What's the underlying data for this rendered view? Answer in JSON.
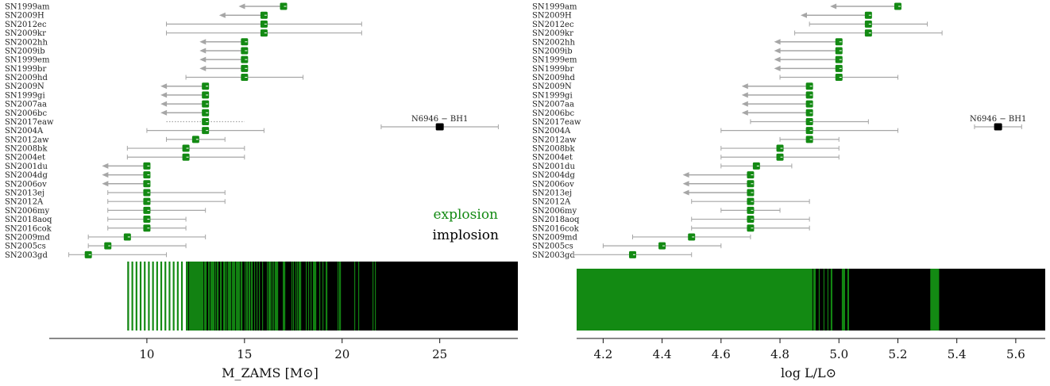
{
  "colors": {
    "explosion": "#138a13",
    "implosion": "#000000",
    "error": "#a6a6a6"
  },
  "legend": {
    "explosion": "explosion",
    "implosion": "implosion"
  },
  "chart_data": [
    {
      "type": "scatter",
      "xlabel": "M_ZAMS [M⊙]",
      "xlim": [
        5,
        29
      ],
      "xticks": [
        10,
        15,
        20,
        25
      ],
      "points": [
        {
          "name": "SN1999am",
          "x": 17,
          "low_limit": true,
          "lo": 14.7
        },
        {
          "name": "SN2009H",
          "x": 16,
          "low_limit": true,
          "lo": 13.7
        },
        {
          "name": "SN2012ec",
          "x": 16,
          "lo": 11,
          "hi": 21
        },
        {
          "name": "SN2009kr",
          "x": 16,
          "lo": 11,
          "hi": 21
        },
        {
          "name": "SN2002hh",
          "x": 15,
          "low_limit": true,
          "lo": 12.7
        },
        {
          "name": "SN2009ib",
          "x": 15,
          "low_limit": true,
          "lo": 12.7
        },
        {
          "name": "SN1999em",
          "x": 15,
          "low_limit": true,
          "lo": 12.7
        },
        {
          "name": "SN1999br",
          "x": 15,
          "low_limit": true,
          "lo": 12.7
        },
        {
          "name": "SN2009hd",
          "x": 15,
          "lo": 12,
          "hi": 18
        },
        {
          "name": "SN2009N",
          "x": 13,
          "low_limit": true,
          "lo": 10.7
        },
        {
          "name": "SN1999gi",
          "x": 13,
          "low_limit": true,
          "lo": 10.7
        },
        {
          "name": "SN2007aa",
          "x": 13,
          "low_limit": true,
          "lo": 10.7
        },
        {
          "name": "SN2006bc",
          "x": 13,
          "low_limit": true,
          "lo": 10.7
        },
        {
          "name": "SN2017eaw",
          "x": 13,
          "lo": 11,
          "hi": 15,
          "dotted": true
        },
        {
          "name": "SN2004A",
          "x": 13,
          "lo": 10,
          "hi": 16
        },
        {
          "name": "SN2012aw",
          "x": 12.5,
          "lo": 11,
          "hi": 14
        },
        {
          "name": "SN2008bk",
          "x": 12,
          "lo": 9,
          "hi": 15
        },
        {
          "name": "SN2004et",
          "x": 12,
          "lo": 9,
          "hi": 15
        },
        {
          "name": "SN2001du",
          "x": 10,
          "low_limit": true,
          "lo": 7.7
        },
        {
          "name": "SN2004dg",
          "x": 10,
          "low_limit": true,
          "lo": 7.7
        },
        {
          "name": "SN2006ov",
          "x": 10,
          "low_limit": true,
          "lo": 7.7
        },
        {
          "name": "SN2013ej",
          "x": 10,
          "lo": 8,
          "hi": 14
        },
        {
          "name": "SN2012A",
          "x": 10,
          "lo": 8,
          "hi": 14
        },
        {
          "name": "SN2006my",
          "x": 10,
          "lo": 8,
          "hi": 13
        },
        {
          "name": "SN2018aoq",
          "x": 10,
          "lo": 8,
          "hi": 12
        },
        {
          "name": "SN2016cok",
          "x": 10,
          "lo": 8,
          "hi": 12
        },
        {
          "name": "SN2009md",
          "x": 9,
          "lo": 7,
          "hi": 13
        },
        {
          "name": "SN2005cs",
          "x": 8,
          "lo": 7,
          "hi": 12
        },
        {
          "name": "SN2003gd",
          "x": 7,
          "lo": 6,
          "hi": 11
        }
      ],
      "bh_candidate": {
        "name": "N6946 − BH1",
        "x": 25,
        "lo": 22,
        "hi": 28
      },
      "strip": {
        "start": 9,
        "end": 29,
        "comb_end": 12
      }
    },
    {
      "type": "scatter",
      "xlabel": "log L/L⊙",
      "xlim": [
        4.11,
        5.7
      ],
      "xticks": [
        4.2,
        4.4,
        4.6,
        4.8,
        5.0,
        5.2,
        5.4,
        5.6
      ],
      "xtick_labels": [
        "4.2",
        "4.4",
        "4.6",
        "4.8",
        "5.0",
        "5.2",
        "5.4",
        "5.6"
      ],
      "points": [
        {
          "name": "SN1999am",
          "x": 5.2,
          "low_limit": true,
          "lo": 4.97
        },
        {
          "name": "SN2009H",
          "x": 5.1,
          "low_limit": true,
          "lo": 4.87
        },
        {
          "name": "SN2012ec",
          "x": 5.1,
          "lo": 4.9,
          "hi": 5.3
        },
        {
          "name": "SN2009kr",
          "x": 5.1,
          "lo": 4.85,
          "hi": 5.35
        },
        {
          "name": "SN2002hh",
          "x": 5.0,
          "low_limit": true,
          "lo": 4.78
        },
        {
          "name": "SN2009ib",
          "x": 5.0,
          "low_limit": true,
          "lo": 4.78
        },
        {
          "name": "SN1999em",
          "x": 5.0,
          "low_limit": true,
          "lo": 4.78
        },
        {
          "name": "SN1999br",
          "x": 5.0,
          "low_limit": true,
          "lo": 4.78
        },
        {
          "name": "SN2009hd",
          "x": 5.0,
          "lo": 4.8,
          "hi": 5.2
        },
        {
          "name": "SN2009N",
          "x": 4.9,
          "low_limit": true,
          "lo": 4.67
        },
        {
          "name": "SN1999gi",
          "x": 4.9,
          "low_limit": true,
          "lo": 4.67
        },
        {
          "name": "SN2007aa",
          "x": 4.9,
          "low_limit": true,
          "lo": 4.67
        },
        {
          "name": "SN2006bc",
          "x": 4.9,
          "low_limit": true,
          "lo": 4.67
        },
        {
          "name": "SN2017eaw",
          "x": 4.9,
          "lo": 4.7,
          "hi": 5.1
        },
        {
          "name": "SN2004A",
          "x": 4.9,
          "lo": 4.6,
          "hi": 5.2
        },
        {
          "name": "SN2012aw",
          "x": 4.9,
          "lo": 4.8,
          "hi": 5.0
        },
        {
          "name": "SN2008bk",
          "x": 4.8,
          "lo": 4.6,
          "hi": 5.0
        },
        {
          "name": "SN2004et",
          "x": 4.8,
          "lo": 4.6,
          "hi": 5.0
        },
        {
          "name": "SN2001du",
          "x": 4.72,
          "lo": 4.6,
          "hi": 4.84
        },
        {
          "name": "SN2004dg",
          "x": 4.7,
          "low_limit": true,
          "lo": 4.47
        },
        {
          "name": "SN2006ov",
          "x": 4.7,
          "low_limit": true,
          "lo": 4.47
        },
        {
          "name": "SN2013ej",
          "x": 4.7,
          "low_limit": true,
          "lo": 4.47
        },
        {
          "name": "SN2012A",
          "x": 4.7,
          "lo": 4.5,
          "hi": 4.9
        },
        {
          "name": "SN2006my",
          "x": 4.7,
          "lo": 4.6,
          "hi": 4.8
        },
        {
          "name": "SN2018aoq",
          "x": 4.7,
          "lo": 4.5,
          "hi": 4.9
        },
        {
          "name": "SN2016cok",
          "x": 4.7,
          "lo": 4.5,
          "hi": 4.9
        },
        {
          "name": "SN2009md",
          "x": 4.5,
          "lo": 4.3,
          "hi": 4.7
        },
        {
          "name": "SN2005cs",
          "x": 4.4,
          "lo": 4.2,
          "hi": 4.6
        },
        {
          "name": "SN2003gd",
          "x": 4.3,
          "lo": 4.1,
          "hi": 4.5
        }
      ],
      "bh_candidate": {
        "name": "N6946 − BH1",
        "x": 5.54,
        "lo": 5.46,
        "hi": 5.62
      },
      "strip": {
        "start": 4.11,
        "end": 5.7,
        "solid_end": 4.91
      }
    }
  ]
}
